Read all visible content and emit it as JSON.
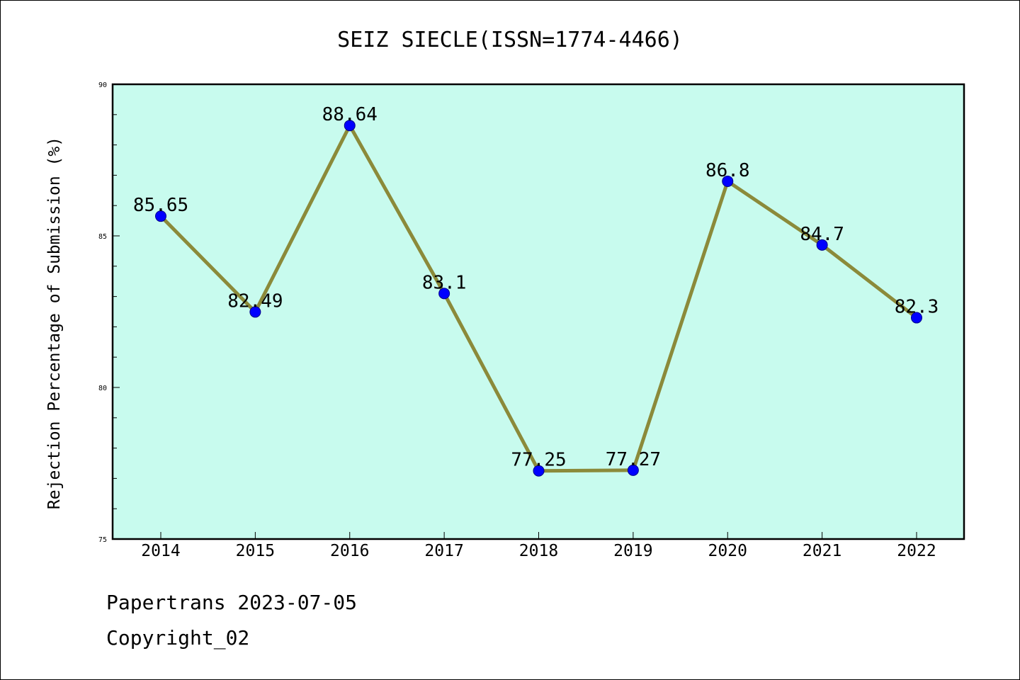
{
  "chart_data": {
    "type": "line",
    "title": "SEIZ SIECLE(ISSN=1774-4466)",
    "ylabel": "Rejection Percentage of Submission (%)",
    "xlabel": "",
    "categories": [
      "2014",
      "2015",
      "2016",
      "2017",
      "2018",
      "2019",
      "2020",
      "2021",
      "2022"
    ],
    "values": [
      85.65,
      82.49,
      88.64,
      83.1,
      77.25,
      77.27,
      86.8,
      84.7,
      82.3
    ],
    "data_labels": [
      "85.65",
      "82.49",
      "88.64",
      "83.1",
      "77.25",
      "77.27",
      "86.8",
      "84.7",
      "82.3"
    ],
    "ylim": [
      75,
      90
    ],
    "yticks": [
      75,
      80,
      85,
      90
    ],
    "ytick_labels": [
      "75",
      "80",
      "85",
      "90"
    ],
    "grid": false,
    "colors": {
      "plot_background": "#c8fbee",
      "line": "#8b8a3a",
      "marker": "#0000ff"
    }
  },
  "footer": {
    "line1": "Papertrans 2023-07-05",
    "line2": "Copyright_02"
  }
}
